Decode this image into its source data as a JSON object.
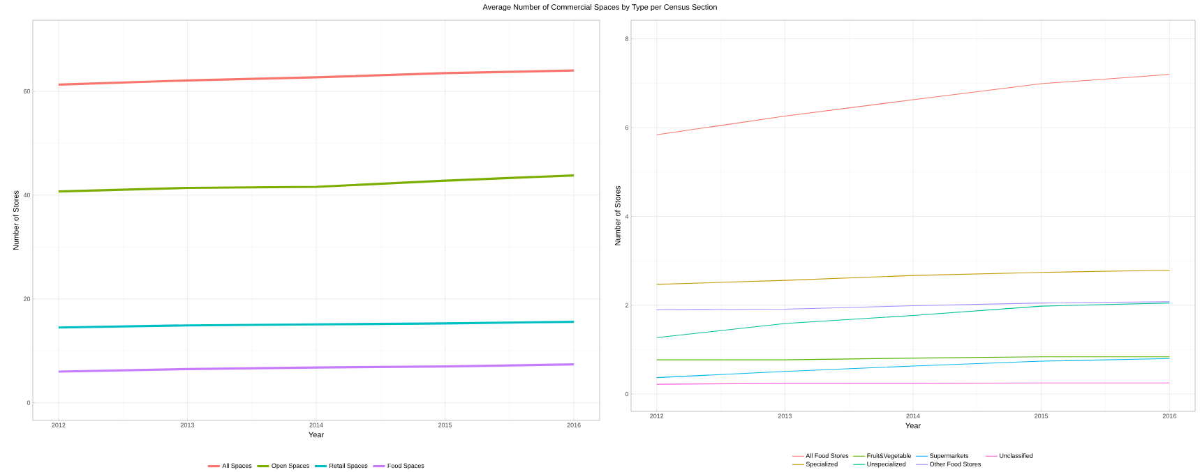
{
  "chart_data": [
    {
      "type": "line",
      "title": "Average Number of Commercial Spaces by Type per Census Section",
      "xlabel": "Year",
      "ylabel": "Number of Stores",
      "x": [
        2012,
        2013,
        2014,
        2015,
        2016
      ],
      "xlim": [
        2011.8,
        2016.2
      ],
      "ylim": [
        -3.4,
        73.7
      ],
      "xticks": [
        2012,
        2013,
        2014,
        2015,
        2016
      ],
      "yticks": [
        0,
        20,
        40,
        60
      ],
      "grid": true,
      "legend": "bottom",
      "series": [
        {
          "name": "All Spaces",
          "color": "#f8766d",
          "values": [
            61.3,
            62.1,
            62.7,
            63.5,
            64.0
          ]
        },
        {
          "name": "Open Spaces",
          "color": "#7cae00",
          "values": [
            40.7,
            41.4,
            41.6,
            42.8,
            43.8
          ]
        },
        {
          "name": "Retail Spaces",
          "color": "#00bfc4",
          "values": [
            14.5,
            14.9,
            15.1,
            15.3,
            15.6
          ]
        },
        {
          "name": "Food Spaces",
          "color": "#c77cff",
          "values": [
            6.0,
            6.5,
            6.8,
            7.0,
            7.4
          ]
        }
      ]
    },
    {
      "type": "line",
      "xlabel": "Year",
      "ylabel": "Number of Stores",
      "x": [
        2012,
        2013,
        2014,
        2015,
        2016
      ],
      "xlim": [
        2011.8,
        2016.2
      ],
      "ylim": [
        -0.39,
        8.42
      ],
      "xticks": [
        2012,
        2013,
        2014,
        2015,
        2016
      ],
      "yticks": [
        0,
        2,
        4,
        6,
        8
      ],
      "grid": true,
      "legend": "bottom",
      "series": [
        {
          "name": "All Food Stores",
          "color": "#f8766d",
          "values": [
            5.84,
            6.26,
            6.63,
            6.99,
            7.2
          ]
        },
        {
          "name": "Fruit&Vegetable",
          "color": "#53b400",
          "values": [
            0.77,
            0.77,
            0.81,
            0.84,
            0.84
          ]
        },
        {
          "name": "Supermarkets",
          "color": "#00b6eb",
          "values": [
            0.37,
            0.51,
            0.63,
            0.74,
            0.8
          ]
        },
        {
          "name": "Unclassified",
          "color": "#fb61d7",
          "values": [
            0.22,
            0.24,
            0.24,
            0.25,
            0.25
          ]
        },
        {
          "name": "Specialized",
          "color": "#c49a00",
          "values": [
            2.47,
            2.56,
            2.67,
            2.74,
            2.79
          ]
        },
        {
          "name": "Unspecialized",
          "color": "#00c094",
          "values": [
            1.27,
            1.59,
            1.77,
            1.98,
            2.05
          ]
        },
        {
          "name": "Other Food Stores",
          "color": "#a58aff",
          "values": [
            1.9,
            1.91,
            1.99,
            2.05,
            2.08
          ]
        }
      ]
    }
  ]
}
